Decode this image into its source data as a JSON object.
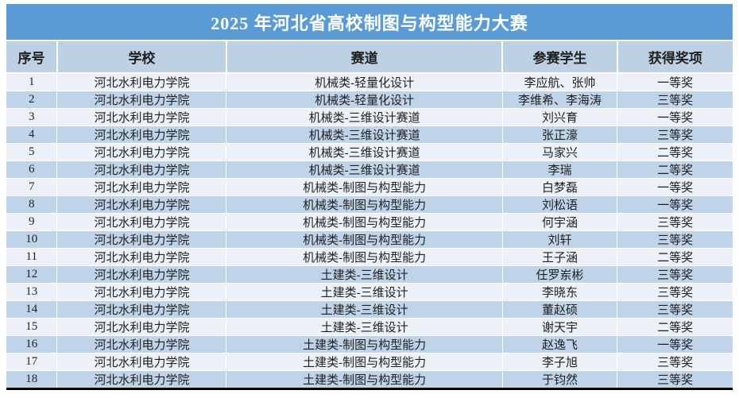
{
  "title": "2025 年河北省高校制图与构型能力大赛",
  "table": {
    "columns": [
      "序号",
      "学校",
      "赛道",
      "参赛学生",
      "获得奖项"
    ],
    "rows": [
      {
        "no": "1",
        "school": "河北水利电力学院",
        "track": "机械类-轻量化设计",
        "students": "李应航、张帅",
        "award": "一等奖"
      },
      {
        "no": "2",
        "school": "河北水利电力学院",
        "track": "机械类-轻量化设计",
        "students": "李维希、李海涛",
        "award": "三等奖"
      },
      {
        "no": "3",
        "school": "河北水利电力学院",
        "track": "机械类-三维设计赛道",
        "students": "刘兴育",
        "award": "一等奖"
      },
      {
        "no": "4",
        "school": "河北水利电力学院",
        "track": "机械类-三维设计赛道",
        "students": "张正濠",
        "award": "三等奖"
      },
      {
        "no": "5",
        "school": "河北水利电力学院",
        "track": "机械类-三维设计赛道",
        "students": "马家兴",
        "award": "二等奖"
      },
      {
        "no": "6",
        "school": "河北水利电力学院",
        "track": "机械类-三维设计赛道",
        "students": "李瑞",
        "award": "二等奖"
      },
      {
        "no": "7",
        "school": "河北水利电力学院",
        "track": "机械类-制图与构型能力",
        "students": "白梦磊",
        "award": "一等奖"
      },
      {
        "no": "8",
        "school": "河北水利电力学院",
        "track": "机械类-制图与构型能力",
        "students": "刘松语",
        "award": "一等奖"
      },
      {
        "no": "9",
        "school": "河北水利电力学院",
        "track": "机械类-制图与构型能力",
        "students": "何宇涵",
        "award": "三等奖"
      },
      {
        "no": "10",
        "school": "河北水利电力学院",
        "track": "机械类-制图与构型能力",
        "students": "刘轩",
        "award": "三等奖"
      },
      {
        "no": "11",
        "school": "河北水利电力学院",
        "track": "机械类-制图与构型能力",
        "students": "王子涵",
        "award": "二等奖"
      },
      {
        "no": "12",
        "school": "河北水利电力学院",
        "track": "土建类-三维设计",
        "students": "任罗岽彬",
        "award": "三等奖"
      },
      {
        "no": "13",
        "school": "河北水利电力学院",
        "track": "土建类-三维设计",
        "students": "李晓东",
        "award": "三等奖"
      },
      {
        "no": "14",
        "school": "河北水利电力学院",
        "track": "土建类-三维设计",
        "students": "董赵硕",
        "award": "三等奖"
      },
      {
        "no": "15",
        "school": "河北水利电力学院",
        "track": "土建类-三维设计",
        "students": "谢天宇",
        "award": "二等奖"
      },
      {
        "no": "16",
        "school": "河北水利电力学院",
        "track": "土建类-制图与构型能力",
        "students": "赵逸飞",
        "award": "一等奖"
      },
      {
        "no": "17",
        "school": "河北水利电力学院",
        "track": "土建类-制图与构型能力",
        "students": "李子旭",
        "award": "三等奖"
      },
      {
        "no": "18",
        "school": "河北水利电力学院",
        "track": "土建类-制图与构型能力",
        "students": "于钧然",
        "award": "三等奖"
      }
    ]
  },
  "colors": {
    "title_bar": "#5B9BD5",
    "header_row": "#BCD2E4",
    "row_odd": "#EDF1F7",
    "row_even": "#BFD4E8",
    "text": "#1f1f1f"
  }
}
